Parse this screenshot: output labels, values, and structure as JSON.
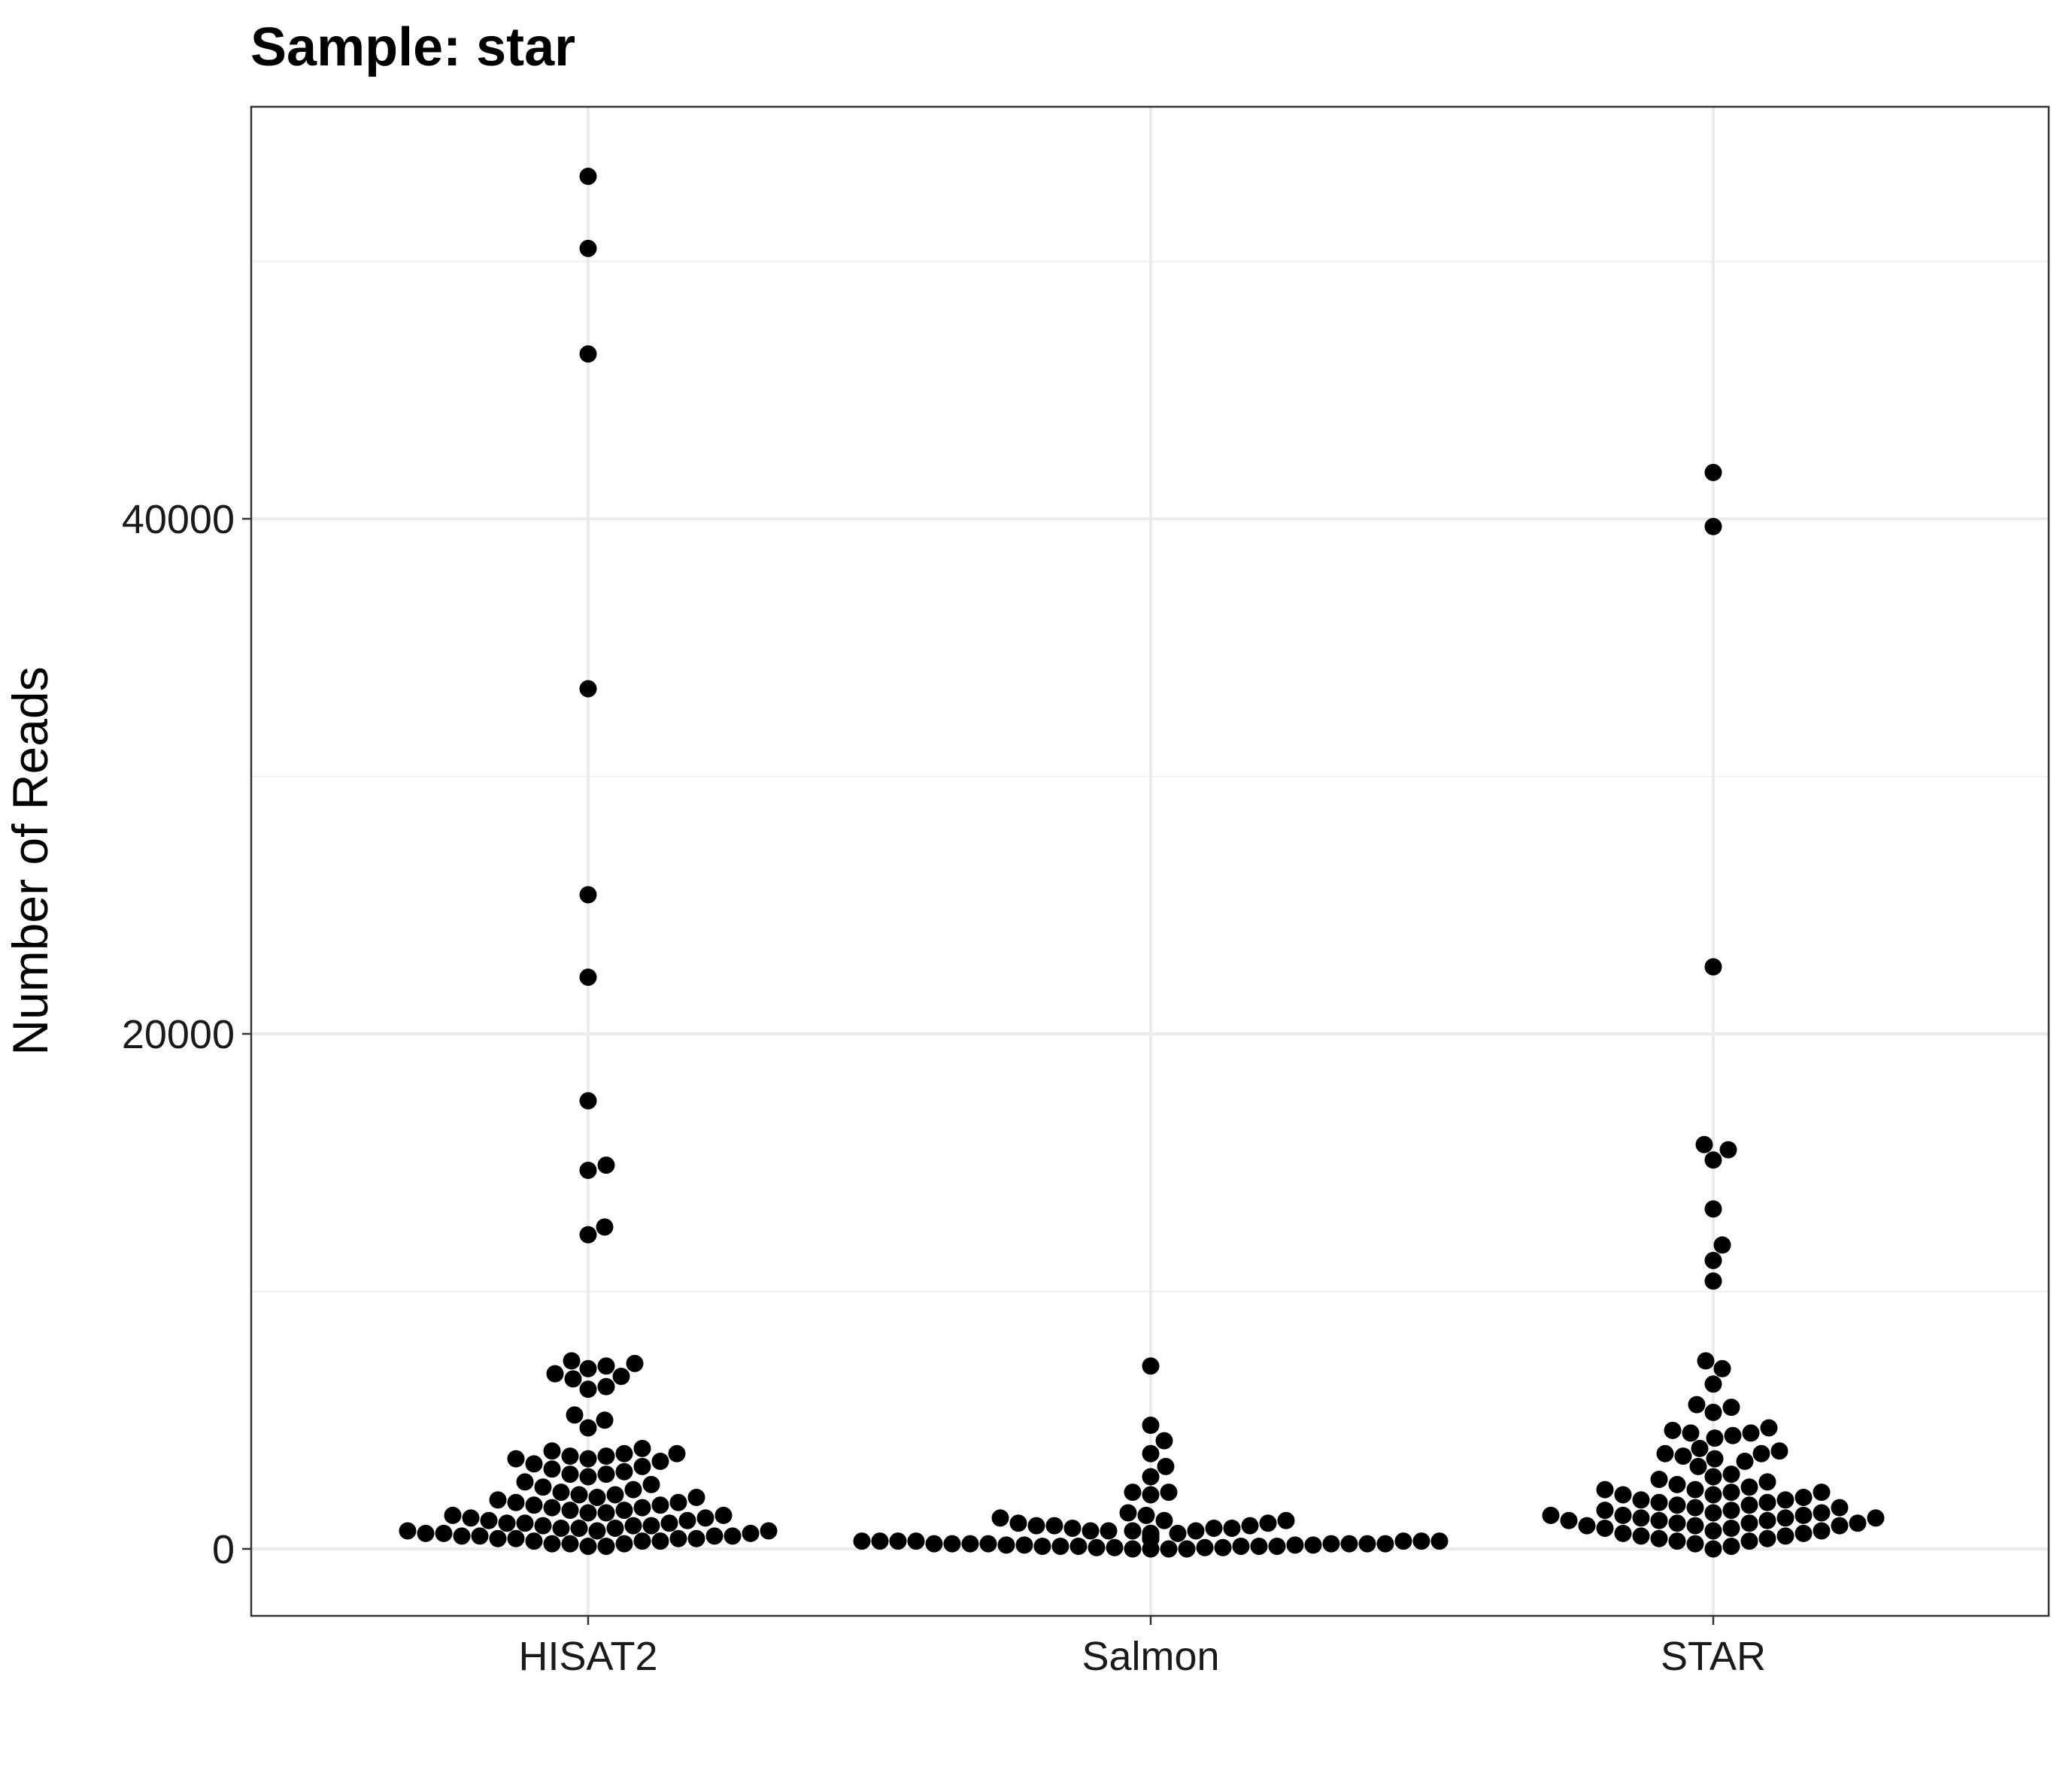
{
  "chart_data": {
    "type": "scatter",
    "subtype": "beeswarm",
    "title": "Sample: star",
    "xlabel": "",
    "ylabel": "Number of Reads",
    "categories": [
      "HISAT2",
      "Salmon",
      "STAR"
    ],
    "y_ticks": [
      0,
      20000,
      40000
    ],
    "y_tick_labels": [
      "0",
      "20000",
      "40000"
    ],
    "ylim": [
      -2600,
      56000
    ],
    "grid": true,
    "legend": "none",
    "point_color": "#000000",
    "series": [
      {
        "category": "HISAT2",
        "values": [
          53300,
          50500,
          46400,
          33400,
          25400,
          22200,
          17400,
          14900,
          14700,
          12500,
          12200,
          7300,
          7200,
          7100,
          7000,
          6800,
          6700,
          6600,
          6300,
          6200,
          5200,
          5000,
          4700,
          3900,
          3800,
          3700,
          3700,
          3600,
          3600,
          3500,
          3500,
          3400,
          3300,
          3200,
          3100,
          3000,
          2900,
          2900,
          2800,
          2600,
          2500,
          2400,
          2300,
          2200,
          2100,
          2100,
          2000,
          2000,
          1900,
          1800,
          1800,
          1700,
          1700,
          1600,
          1600,
          1500,
          1500,
          1400,
          1400,
          1300,
          1300,
          1200,
          1200,
          1100,
          1100,
          1000,
          1000,
          1000,
          900,
          900,
          900,
          800,
          800,
          800,
          700,
          700,
          700,
          600,
          600,
          600,
          500,
          500,
          500,
          500,
          400,
          400,
          400,
          400,
          300,
          300,
          300,
          200,
          200,
          200,
          100,
          100
        ]
      },
      {
        "category": "Salmon",
        "values": [
          7100,
          4800,
          4200,
          3700,
          3200,
          2800,
          2200,
          2200,
          2100,
          1400,
          1300,
          1200,
          1100,
          1100,
          1000,
          1000,
          900,
          900,
          900,
          800,
          800,
          800,
          700,
          700,
          700,
          700,
          600,
          600,
          600,
          600,
          500,
          500,
          500,
          500,
          500,
          400,
          400,
          400,
          400,
          400,
          400,
          300,
          300,
          300,
          300,
          300,
          300,
          300,
          200,
          200,
          200,
          200,
          200,
          200,
          200,
          200,
          150,
          150,
          150,
          150,
          100,
          100,
          100,
          100,
          100,
          100,
          50,
          50,
          50,
          50,
          0,
          0,
          0,
          0
        ]
      },
      {
        "category": "STAR",
        "values": [
          41800,
          39700,
          22600,
          15700,
          15500,
          15100,
          13200,
          11800,
          11200,
          10400,
          7300,
          7000,
          6400,
          5600,
          5500,
          5300,
          4700,
          4600,
          4500,
          4500,
          4400,
          4300,
          3900,
          3800,
          3700,
          3700,
          3600,
          3500,
          3400,
          3200,
          2900,
          2800,
          2700,
          2600,
          2500,
          2400,
          2300,
          2300,
          2200,
          2200,
          2100,
          2100,
          2000,
          1900,
          1900,
          1800,
          1800,
          1700,
          1700,
          1600,
          1600,
          1500,
          1500,
          1400,
          1400,
          1300,
          1300,
          1300,
          1200,
          1200,
          1200,
          1100,
          1100,
          1100,
          1000,
          1000,
          1000,
          900,
          900,
          900,
          800,
          800,
          700,
          700,
          600,
          600,
          500,
          500,
          400,
          400,
          300,
          300,
          200,
          100,
          0
        ]
      }
    ]
  }
}
